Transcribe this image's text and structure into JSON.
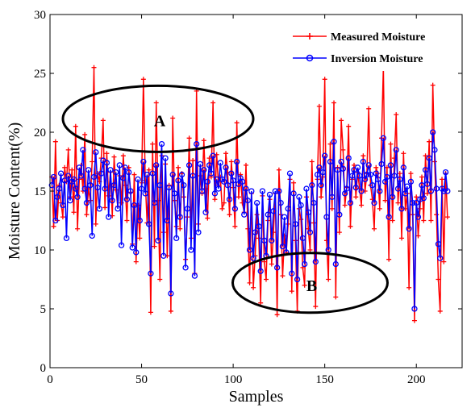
{
  "chart_data": {
    "type": "line",
    "xlabel": "Samples",
    "ylabel": "Moisture Content(%)",
    "xlim": [
      0,
      225
    ],
    "ylim": [
      0,
      30
    ],
    "xticks": [
      0,
      50,
      100,
      150,
      200
    ],
    "yticks": [
      0,
      5,
      10,
      15,
      20,
      25,
      30
    ],
    "grid": false,
    "legend_position": "top-right",
    "series": [
      {
        "name": "Measured Moisture",
        "color": "#ff0000",
        "marker": "plus",
        "values": [
          16.2,
          12.0,
          19.2,
          12.5,
          15.5,
          14.0,
          12.8,
          17.0,
          15.8,
          18.5,
          14.5,
          16.8,
          13.2,
          20.5,
          11.8,
          16.0,
          17.2,
          15.0,
          19.8,
          13.0,
          15.2,
          14.2,
          17.5,
          25.5,
          12.2,
          16.5,
          15.8,
          17.8,
          21.0,
          13.6,
          18.2,
          14.6,
          16.6,
          12.9,
          17.9,
          15.1,
          13.7,
          16.3,
          14.0,
          18.0,
          15.5,
          12.5,
          17.0,
          14.9,
          10.5,
          16.4,
          9.0,
          13.8,
          11.0,
          15.7,
          24.5,
          15.9,
          12.3,
          16.8,
          4.7,
          19.0,
          10.3,
          22.5,
          14.2,
          7.5,
          18.0,
          11.5,
          17.3,
          9.5,
          15.5,
          4.8,
          21.2,
          14.2,
          12.0,
          17.0,
          11.8,
          16.5,
          14.5,
          9.2,
          12.8,
          19.5,
          11.0,
          17.6,
          8.0,
          23.5,
          12.2,
          16.3,
          14.8,
          19.3,
          15.2,
          12.7,
          17.8,
          16.2,
          22.5,
          14.3,
          18.1,
          15.5,
          16.2,
          13.5,
          14.0,
          18.2,
          16.6,
          13.0,
          17.5,
          15.3,
          12.0,
          20.8,
          14.5,
          16.4,
          14.0,
          13.2,
          17.2,
          11.8,
          7.2,
          14.8,
          6.8,
          9.5,
          13.0,
          11.0,
          5.5,
          14.6,
          9.0,
          7.5,
          12.5,
          14.3,
          8.8,
          11.5,
          14.8,
          4.5,
          16.8,
          13.0,
          7.8,
          11.2,
          9.8,
          12.2,
          16.0,
          6.5,
          15.7,
          10.8,
          4.8,
          13.5,
          12.6,
          8.5,
          7.0,
          14.5,
          11.8,
          10.0,
          17.5,
          12.3,
          5.2,
          16.0,
          22.2,
          14.5,
          16.2,
          24.5,
          10.8,
          7.5,
          19.0,
          13.5,
          22.5,
          6.0,
          17.0,
          11.5,
          21.0,
          18.5,
          13.8,
          15.3,
          20.5,
          12.0,
          16.0,
          17.2,
          14.5,
          16.6,
          15.2,
          13.8,
          18.0,
          15.0,
          16.5,
          22.0,
          15.5,
          14.3,
          11.8,
          17.0,
          16.5,
          13.5,
          19.5,
          25.5,
          14.2,
          17.0,
          9.2,
          19.0,
          12.5,
          17.8,
          21.5,
          14.0,
          16.5,
          11.0,
          18.2,
          13.5,
          14.8,
          6.8,
          16.5,
          13.0,
          4.0,
          14.5,
          11.2,
          13.5,
          16.2,
          12.5,
          18.0,
          14.8,
          19.2,
          12.5,
          24.0,
          17.5,
          13.0,
          7.5,
          4.8,
          16.0,
          9.0,
          16.5,
          12.8
        ]
      },
      {
        "name": "Inversion Moisture",
        "color": "#0000ff",
        "marker": "circle",
        "values": [
          15.5,
          16.2,
          12.5,
          14.5,
          15.2,
          16.5,
          13.8,
          15.9,
          11.0,
          16.3,
          14.2,
          15.8,
          16.0,
          15.2,
          14.5,
          17.0,
          16.3,
          18.5,
          15.2,
          14.0,
          16.8,
          15.5,
          11.2,
          16.2,
          18.3,
          15.3,
          13.5,
          16.5,
          17.6,
          15.2,
          17.4,
          12.8,
          16.8,
          14.2,
          15.5,
          16.6,
          13.5,
          17.2,
          10.4,
          16.1,
          17.0,
          14.3,
          16.6,
          15.0,
          10.2,
          13.8,
          9.8,
          16.0,
          12.5,
          15.2,
          17.5,
          14.8,
          16.4,
          12.2,
          8.0,
          16.5,
          14.0,
          17.2,
          10.8,
          15.5,
          19.0,
          9.5,
          17.8,
          12.5,
          15.3,
          6.3,
          16.4,
          14.8,
          11.0,
          15.9,
          12.8,
          16.4,
          15.5,
          8.5,
          13.5,
          17.2,
          10.0,
          16.3,
          7.8,
          19.0,
          11.5,
          17.3,
          15.0,
          16.8,
          13.2,
          15.8,
          17.2,
          16.5,
          18.0,
          14.8,
          16.0,
          15.2,
          17.4,
          16.0,
          15.8,
          17.0,
          15.5,
          14.3,
          16.5,
          15.9,
          13.5,
          17.5,
          15.6,
          16.1,
          15.8,
          13.0,
          15.2,
          14.2,
          10.0,
          15.0,
          9.3,
          11.5,
          14.0,
          12.0,
          8.2,
          15.0,
          10.8,
          9.5,
          13.0,
          14.7,
          10.8,
          13.3,
          15.0,
          8.5,
          15.0,
          14.0,
          10.3,
          12.8,
          9.8,
          13.5,
          16.5,
          8.0,
          14.8,
          12.2,
          7.5,
          14.5,
          13.8,
          11.0,
          8.8,
          15.2,
          13.2,
          11.5,
          15.5,
          14.0,
          9.0,
          16.4,
          17.0,
          15.5,
          16.6,
          18.0,
          12.8,
          10.0,
          17.5,
          14.5,
          19.2,
          8.8,
          16.8,
          13.0,
          17.5,
          16.9,
          14.8,
          15.2,
          17.8,
          14.0,
          16.3,
          16.8,
          15.3,
          17.0,
          16.3,
          15.0,
          17.5,
          16.0,
          16.4,
          17.2,
          16.4,
          15.5,
          14.0,
          16.5,
          16.0,
          15.0,
          17.3,
          19.5,
          15.8,
          16.2,
          12.8,
          17.2,
          14.5,
          16.3,
          18.5,
          15.2,
          16.0,
          13.5,
          17.0,
          14.8,
          15.4,
          11.8,
          15.8,
          14.0,
          5.0,
          14.0,
          12.8,
          14.3,
          15.5,
          14.4,
          16.8,
          15.6,
          17.8,
          15.0,
          20.0,
          18.5,
          15.2,
          10.5,
          9.3,
          15.2,
          15.0,
          16.6,
          15.0
        ]
      }
    ],
    "annotations": [
      {
        "label": "A",
        "x": 59,
        "y": 21
      },
      {
        "label": "B",
        "x": 142,
        "y": 7
      }
    ]
  }
}
